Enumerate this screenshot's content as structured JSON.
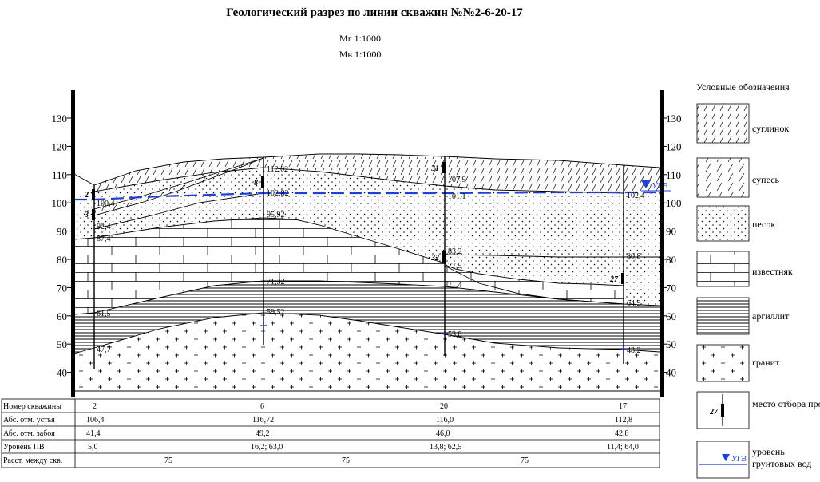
{
  "title": "Геологический разрез по линии скважин №№2-6-20-17",
  "scale_h": "Мг 1:1000",
  "scale_v": "Мв 1:1000",
  "axis_ticks": [
    "130",
    "120",
    "110",
    "100",
    "90",
    "80",
    "70",
    "60",
    "50",
    "40"
  ],
  "wells": [
    {
      "no": "2",
      "mouth": "106,4",
      "bottom": "41,4",
      "gw": "5,0",
      "elev": [
        "100,4",
        "92,4",
        "87,4",
        "61,5",
        "47,7"
      ],
      "samples": [
        "2",
        "3"
      ]
    },
    {
      "no": "6",
      "mouth": "116,72",
      "bottom": "49,2",
      "gw": "16,2; 63,0",
      "elev": [
        "112,02",
        "102,82",
        "95,92",
        "71,32",
        "59,52"
      ],
      "samples": [
        "8"
      ]
    },
    {
      "no": "20",
      "mouth": "116,0",
      "bottom": "46,0",
      "gw": "13,8; 62,5",
      "elev": [
        "107,9",
        "101,1",
        "83,2",
        "77,9",
        "71,4",
        "53,8"
      ],
      "samples": [
        "31",
        "32"
      ]
    },
    {
      "no": "17",
      "mouth": "112,8",
      "bottom": "42,8",
      "gw": "11,4; 64,0",
      "elev": [
        "102,4",
        "80,8",
        "64,9",
        "48,2"
      ],
      "samples": [
        "27"
      ]
    }
  ],
  "table": {
    "rows": [
      "Номер скважины",
      "Абс. отм. устья",
      "Абс. отм. забоя",
      "Уровень ПВ",
      "Расст. между скв."
    ],
    "distances": [
      "75",
      "75",
      "75"
    ]
  },
  "legend": {
    "title": "Условные обозначения",
    "items": [
      "суглинок",
      "супесь",
      "песок",
      "известняк",
      "аргиллит",
      "гранит",
      "место отбора пробы",
      "уровень грунтовых вод"
    ],
    "sample_no": "27",
    "gw_mark": "УГВ"
  },
  "gw_label": "УГВ",
  "colors": {
    "water": "#1f3fd6",
    "line": "#000000"
  }
}
